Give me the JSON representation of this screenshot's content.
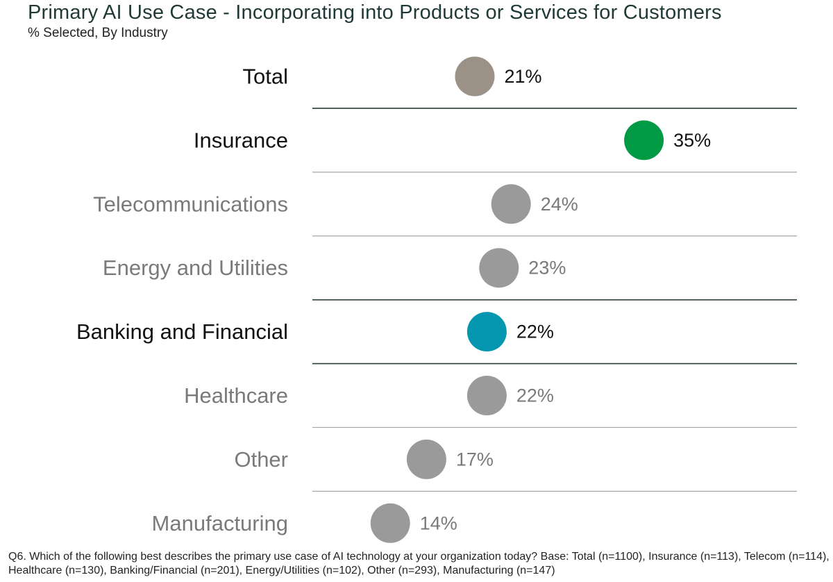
{
  "chart_data": {
    "type": "scatter",
    "title": "Primary AI Use Case - Incorporating into Products or Services for Customers",
    "subtitle": "% Selected, By Industry",
    "categories": [
      "Total",
      "Insurance",
      "Telecommunications",
      "Energy and Utilities",
      "Banking and Financial",
      "Healthcare",
      "Other",
      "Manufacturing"
    ],
    "values": [
      21,
      35,
      24,
      23,
      22,
      22,
      17,
      14
    ],
    "value_labels": [
      "21%",
      "35%",
      "24%",
      "23%",
      "22%",
      "22%",
      "17%",
      "14%"
    ],
    "highlight": [
      true,
      true,
      false,
      false,
      true,
      false,
      false,
      false
    ],
    "point_colors": [
      "#9b9186",
      "#009a44",
      "#9a9a9a",
      "#9a9a9a",
      "#0597b0",
      "#9a9a9a",
      "#9a9a9a",
      "#9a9a9a"
    ],
    "xlim": [
      0,
      40
    ],
    "grid": false,
    "separators_after": [
      "Total",
      "Insurance",
      "Telecommunications",
      "Energy and Utilities",
      "Banking and Financial",
      "Healthcare",
      "Other"
    ],
    "dark_separators_after": [
      "Total",
      "Energy and Utilities",
      "Banking and Financial"
    ]
  },
  "footnote": "Q6. Which of the following best describes the primary use case of AI technology at your organization today? Base: Total (n=1100), Insurance (n=113), Telecom (n=114), Healthcare (n=130), Banking/Financial (n=201), Energy/Utilities (n=102), Other (n=293), Manufacturing (n=147)",
  "colors": {
    "highlight_text": "#111111",
    "muted_text": "#7a7a7a",
    "dark_line": "#2b3b38",
    "light_line": "#a6a6a6"
  }
}
